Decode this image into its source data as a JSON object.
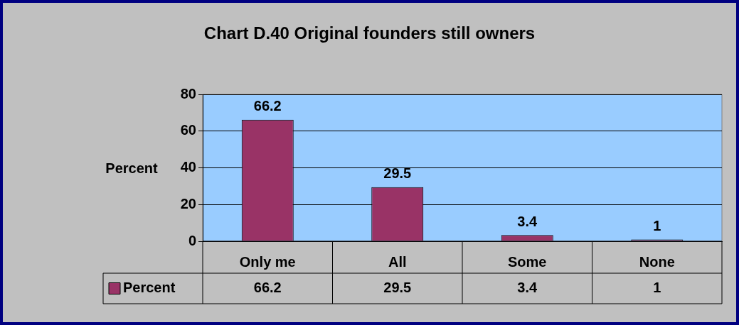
{
  "chart_data": {
    "type": "bar",
    "title": "Chart D.40 Original founders still owners",
    "ylabel": "Percent",
    "categories": [
      "Only me",
      "All",
      "Some",
      "None"
    ],
    "series": [
      {
        "name": "Percent",
        "color": "#993366",
        "values": [
          66.2,
          29.5,
          3.4,
          1
        ],
        "value_labels": [
          "66.2",
          "29.5",
          "3.4",
          "1"
        ]
      }
    ],
    "ylim": [
      0,
      80
    ],
    "yticks": [
      0,
      20,
      40,
      60,
      80
    ],
    "grid": "y",
    "annotations": [
      "66.2",
      "29.5",
      "3.4",
      "1"
    ]
  }
}
